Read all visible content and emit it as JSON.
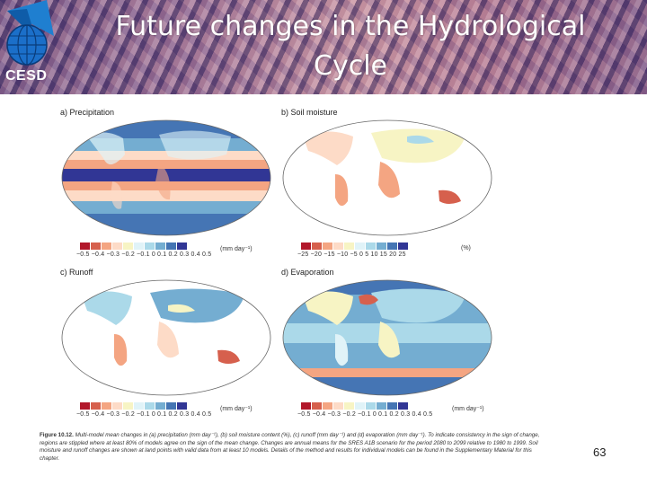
{
  "header": {
    "logo_text": "CESD",
    "title": "Future changes in the Hydrological Cycle"
  },
  "figure": {
    "panels": [
      {
        "label": "a) Precipitation",
        "scale_ticks": "−0.5 −0.4 −0.3 −0.2 −0.1   0   0.1  0.2  0.3  0.4  0.5",
        "unit": "(mm day⁻¹)",
        "colors": [
          "#b2182b",
          "#d6604d",
          "#f4a582",
          "#fddbc7",
          "#f7f4c4",
          "#e0f3f8",
          "#abd9e9",
          "#74add1",
          "#4575b4",
          "#313695"
        ]
      },
      {
        "label": "b) Soil moisture",
        "scale_ticks": "−25  −20  −15  −10   −5    0    5   10   15   20   25",
        "unit": "(%)",
        "colors": [
          "#b2182b",
          "#d6604d",
          "#f4a582",
          "#fddbc7",
          "#f7f4c4",
          "#e0f3f8",
          "#abd9e9",
          "#74add1",
          "#4575b4",
          "#313695"
        ]
      },
      {
        "label": "c) Runoff",
        "scale_ticks": "−0.5 −0.4 −0.3 −0.2 −0.1   0   0.1  0.2  0.3  0.4  0.5",
        "unit": "(mm day⁻¹)",
        "colors": [
          "#b2182b",
          "#d6604d",
          "#f4a582",
          "#fddbc7",
          "#f7f4c4",
          "#e0f3f8",
          "#abd9e9",
          "#74add1",
          "#4575b4",
          "#313695"
        ]
      },
      {
        "label": "d) Evaporation",
        "scale_ticks": "−0.5 −0.4 −0.3 −0.2 −0.1   0   0.1  0.2  0.3  0.4  0.5",
        "unit": "(mm day⁻¹)",
        "colors": [
          "#b2182b",
          "#d6604d",
          "#f4a582",
          "#fddbc7",
          "#f7f4c4",
          "#e0f3f8",
          "#abd9e9",
          "#74add1",
          "#4575b4",
          "#313695"
        ]
      }
    ],
    "caption_label": "Figure 10.12.",
    "caption_text": "Multi-model mean changes in (a) precipitation (mm day⁻¹), (b) soil moisture content (%), (c) runoff (mm day⁻¹) and (d) evaporation (mm day⁻¹). To indicate consistency in the sign of change, regions are stippled where at least 80% of models agree on the sign of the mean change. Changes are annual means for the SRES A1B scenario for the period 2080 to 2099 relative to 1980 to 1999. Soil moisture and runoff changes are shown at land points with valid data from at least 10 models. Details of the method and results for individual models can be found in the Supplementary Material for this chapter."
  },
  "page_number": "63"
}
